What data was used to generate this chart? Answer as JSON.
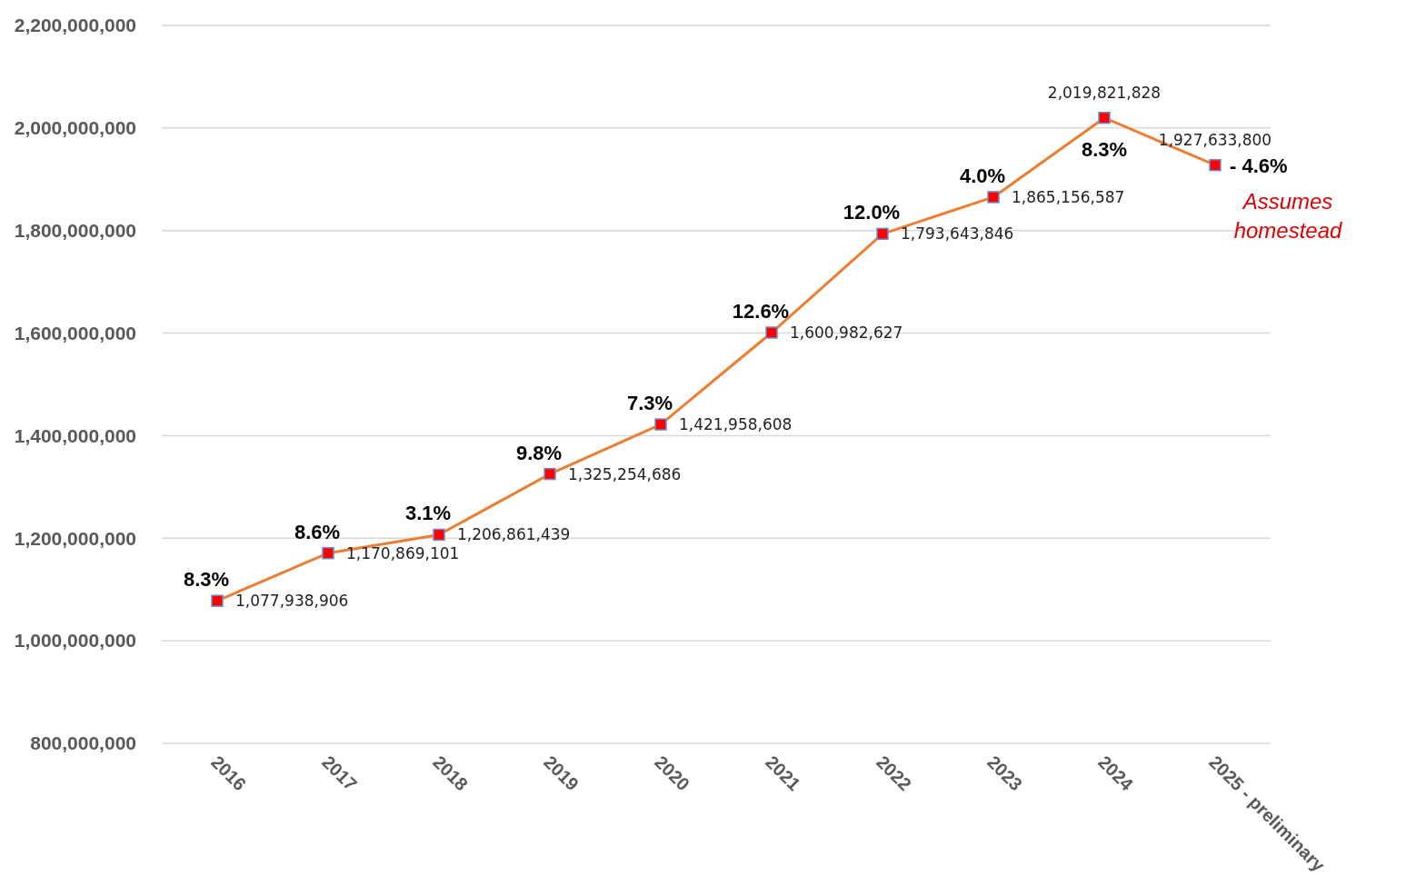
{
  "chart_data": {
    "type": "line",
    "categories": [
      "2016",
      "2017",
      "2018",
      "2019",
      "2020",
      "2021",
      "2022",
      "2023",
      "2024",
      "2025 - preliminary"
    ],
    "series": [
      {
        "color": "#ed7d31",
        "colors": [
          "#ff0000",
          "#ff0000",
          "#ff0000",
          "#ff0000",
          "#ff0000",
          "#ff0000",
          "#ff0000",
          "#ff0000",
          "#ff0000",
          "#ff0000"
        ],
        "values": [
          1077938906,
          1170869101,
          1206861439,
          1325254686,
          1421958608,
          1600982627,
          1793643846,
          1865156587,
          2019821828,
          1927633800
        ],
        "value_labels": [
          "1,077,938,906",
          "1,170,869,101",
          "1,206,861,439",
          "1,325,254,686",
          "1,421,958,608",
          "1,600,982,627",
          "1,793,643,846",
          "1,865,156,587",
          "2,019,821,828",
          "1,927,633,800"
        ]
      }
    ],
    "ylim": [
      800000000,
      2200000000
    ],
    "yticks": [
      {
        "value": 800000000,
        "label": "800,000,000"
      },
      {
        "value": 1000000000,
        "label": "1,000,000,000"
      },
      {
        "value": 1200000000,
        "label": "1,200,000,000"
      },
      {
        "value": 1400000000,
        "label": "1,400,000,000"
      },
      {
        "value": 1600000000,
        "label": "1,600,000,000"
      },
      {
        "value": 1800000000,
        "label": "1,800,000,000"
      },
      {
        "value": 2000000000,
        "label": "2,000,000,000"
      },
      {
        "value": 2200000000,
        "label": "2,200,000,000"
      }
    ],
    "grid": "y",
    "marker": "square",
    "line_style": "solid",
    "annotations": [
      {
        "text": "8.3%",
        "x": "2016",
        "y": 1077938906
      },
      {
        "text": "8.6%",
        "x": "2017",
        "y": 1170869101
      },
      {
        "text": "3.1%",
        "x": "2018",
        "y": 1206861439
      },
      {
        "text": "9.8%",
        "x": "2019",
        "y": 1325254686
      },
      {
        "text": "7.3%",
        "x": "2020",
        "y": 1421958608
      },
      {
        "text": "12.6%",
        "x": "2021",
        "y": 1600982627
      },
      {
        "text": "12.0%",
        "x": "2022",
        "y": 1793643846
      },
      {
        "text": "4.0%",
        "x": "2023",
        "y": 1865156587
      },
      {
        "text": "8.3%",
        "x": "2024",
        "y": 2019821828
      },
      {
        "text": "- 4.6%",
        "x": "2025 - preliminary",
        "y": 1927633800
      },
      "Assumes homestead"
    ]
  }
}
